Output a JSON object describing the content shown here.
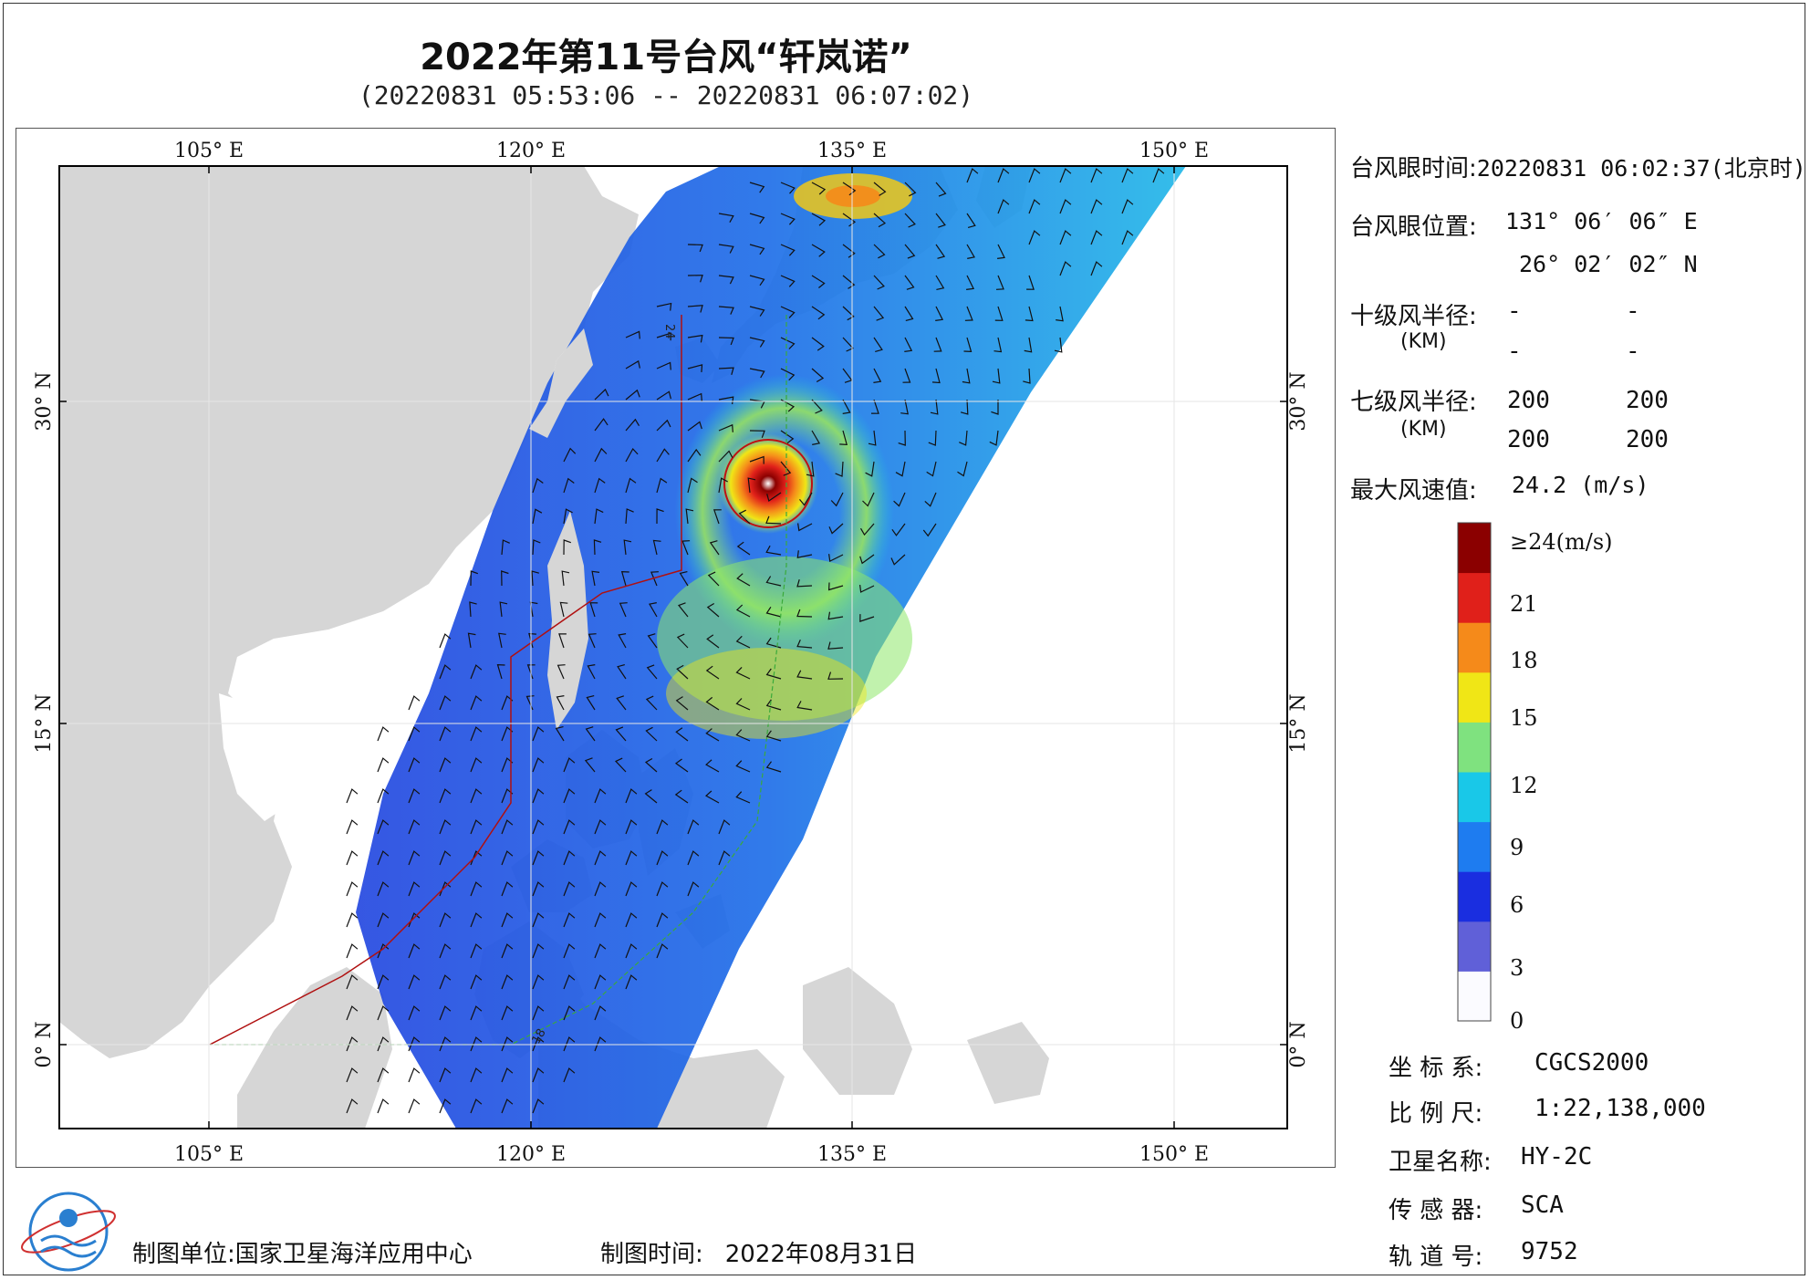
{
  "header": {
    "title": "2022年第11号台风“轩岚诺”",
    "subtitle": "(20220831 05:53:06 -- 20220831 06:07:02)"
  },
  "map": {
    "top_lon_labels": [
      "105° E",
      "120° E",
      "135° E",
      "150° E"
    ],
    "bottom_lon_labels": [
      "105° E",
      "120° E",
      "135° E",
      "150° E"
    ],
    "lat_labels": [
      "30° N",
      "15° N",
      "0° N"
    ],
    "track_labels": [
      "24",
      "18"
    ],
    "colors": {
      "land": "#d6d6d6",
      "sea": "#ffffff",
      "frame": "#000000"
    }
  },
  "info": {
    "eye_time_label": "台风眼时间:",
    "eye_time_value": "20220831 06:02:37(北京时)",
    "eye_pos_label": "台风眼位置:",
    "eye_lon": "131° 06′ 06″ E",
    "eye_lat": "26° 02′ 02″ N",
    "r10_label": "十级风半径:",
    "r10_unit": "(KM)",
    "r10_values": [
      "-",
      "-",
      "-",
      "-"
    ],
    "r7_label": "七级风半径:",
    "r7_unit": "(KM)",
    "r7_values": [
      "200",
      "200",
      "200",
      "200"
    ],
    "max_wind_label": "最大风速值:",
    "max_wind_value": "24.2  (m/s)"
  },
  "colorbar": {
    "labels": [
      "≥24(m/s)",
      "21",
      "18",
      "15",
      "12",
      "9",
      "6",
      "3",
      "0"
    ],
    "colors": [
      "#fbfbff",
      "#6060d8",
      "#1a2ee0",
      "#1e7cf0",
      "#19c8e8",
      "#7fe27f",
      "#f0e616",
      "#f58a1a",
      "#e0201a",
      "#8b0000"
    ]
  },
  "meta": {
    "coord_label": "坐 标 系:",
    "coord_value": "CGCS2000",
    "scale_label": "比 例 尺:",
    "scale_value": "1:22,138,000",
    "sat_label": "卫星名称:",
    "sat_value": "HY-2C",
    "sensor_label": "传 感 器:",
    "sensor_value": "SCA",
    "orbit_label": "轨 道 号:",
    "orbit_value": "9752"
  },
  "footer": {
    "org_label": "制图单位:",
    "org_value": "国家卫星海洋应用中心",
    "date_label": "制图时间:",
    "date_value": "2022年08月31日"
  }
}
